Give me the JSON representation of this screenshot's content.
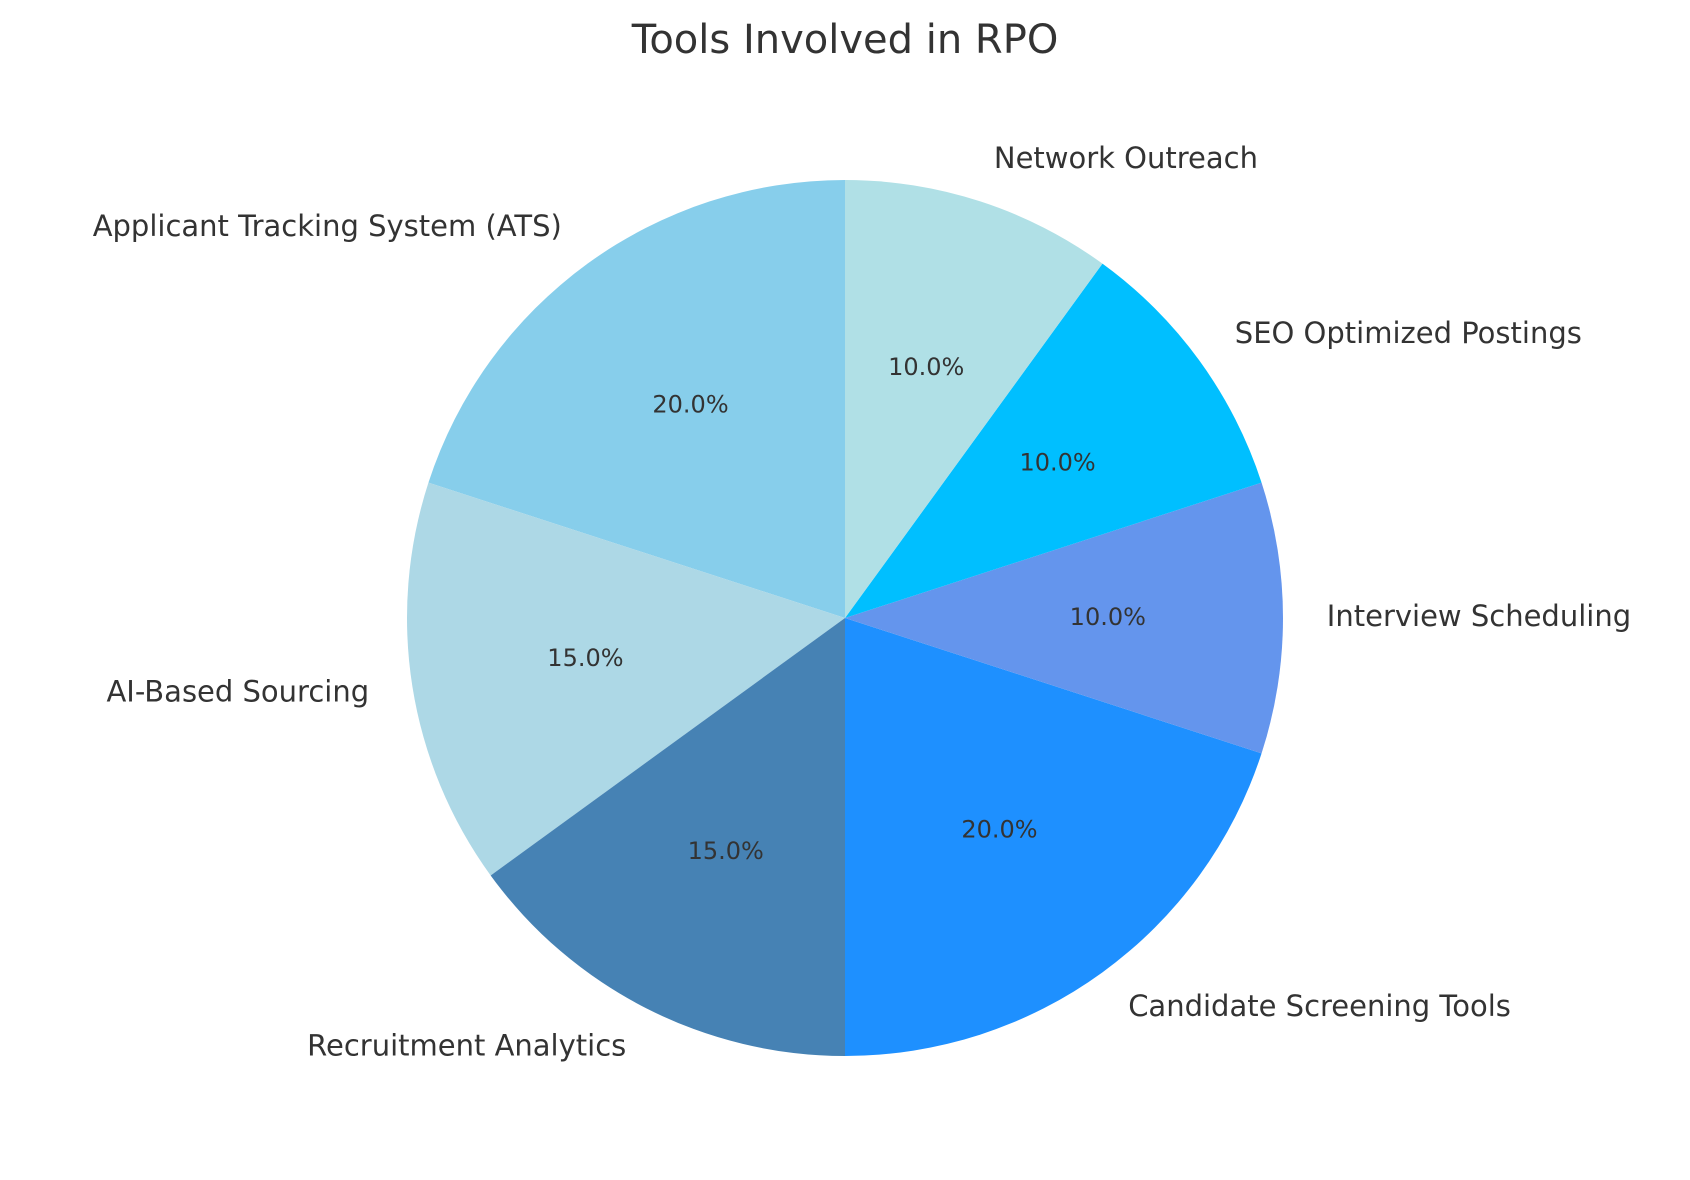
{
  "chart_data": {
    "type": "pie",
    "title": "Tools Involved in RPO",
    "start_angle_deg": 90,
    "direction": "counterclockwise",
    "slices": [
      {
        "label": "Applicant Tracking System (ATS)",
        "value": 20.0,
        "pct_label": "20.0%",
        "color": "#87CEEB"
      },
      {
        "label": "AI-Based Sourcing",
        "value": 15.0,
        "pct_label": "15.0%",
        "color": "#ADD8E6"
      },
      {
        "label": "Recruitment Analytics",
        "value": 15.0,
        "pct_label": "15.0%",
        "color": "#4682B4"
      },
      {
        "label": "Candidate Screening Tools",
        "value": 20.0,
        "pct_label": "20.0%",
        "color": "#1E90FF"
      },
      {
        "label": "Interview Scheduling",
        "value": 10.0,
        "pct_label": "10.0%",
        "color": "#6495ED"
      },
      {
        "label": "SEO Optimized Postings",
        "value": 10.0,
        "pct_label": "10.0%",
        "color": "#00BFFF"
      },
      {
        "label": "Network Outreach",
        "value": 10.0,
        "pct_label": "10.0%",
        "color": "#B0E0E6"
      }
    ]
  }
}
